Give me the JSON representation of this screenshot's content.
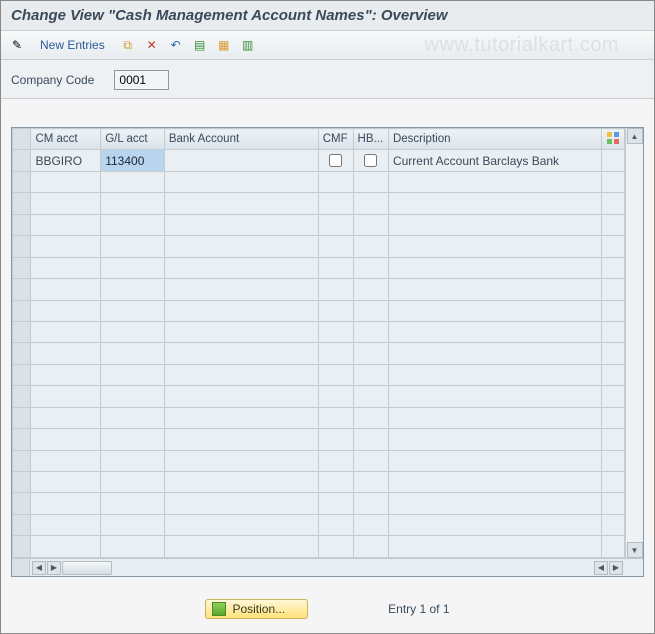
{
  "title": "Change View \"Cash Management Account Names\": Overview",
  "watermark": "www.tutorialkart.com",
  "toolbar": {
    "new_entries_label": "New Entries",
    "icons": {
      "edit": "✎",
      "copy": "⧉",
      "delete": "✕",
      "undo": "↶",
      "select_all": "▤",
      "block": "▦",
      "deselect": "▥"
    }
  },
  "company_code": {
    "label": "Company Code",
    "value": "0001"
  },
  "table": {
    "columns": {
      "cm_acct": "CM acct",
      "gl_acct": "G/L acct",
      "bank_acct": "Bank Account",
      "cmf": "CMF",
      "hb": "HB...",
      "description": "Description"
    },
    "col_widths": {
      "sel": 18,
      "cm_acct": 68,
      "gl_acct": 62,
      "bank_acct": 150,
      "cmf": 32,
      "hb": 32,
      "description": 208,
      "config": 22
    },
    "rows": [
      {
        "cm_acct": "BBGIRO",
        "gl_acct": "113400",
        "bank_acct": "",
        "cmf": false,
        "hb": false,
        "description": "Current Account Barclays Bank"
      }
    ],
    "empty_rows": 18,
    "highlight": {
      "row": 0,
      "col": "gl_acct"
    }
  },
  "footer": {
    "position_label": "Position...",
    "entry_text": "Entry 1 of 1"
  },
  "colors": {
    "header_bg": "#e8ecee",
    "border": "#c8ced3",
    "accent_text": "#3a4a5a",
    "highlight_cell": "#b9d4ef",
    "button_yellow": "#fde27b"
  }
}
